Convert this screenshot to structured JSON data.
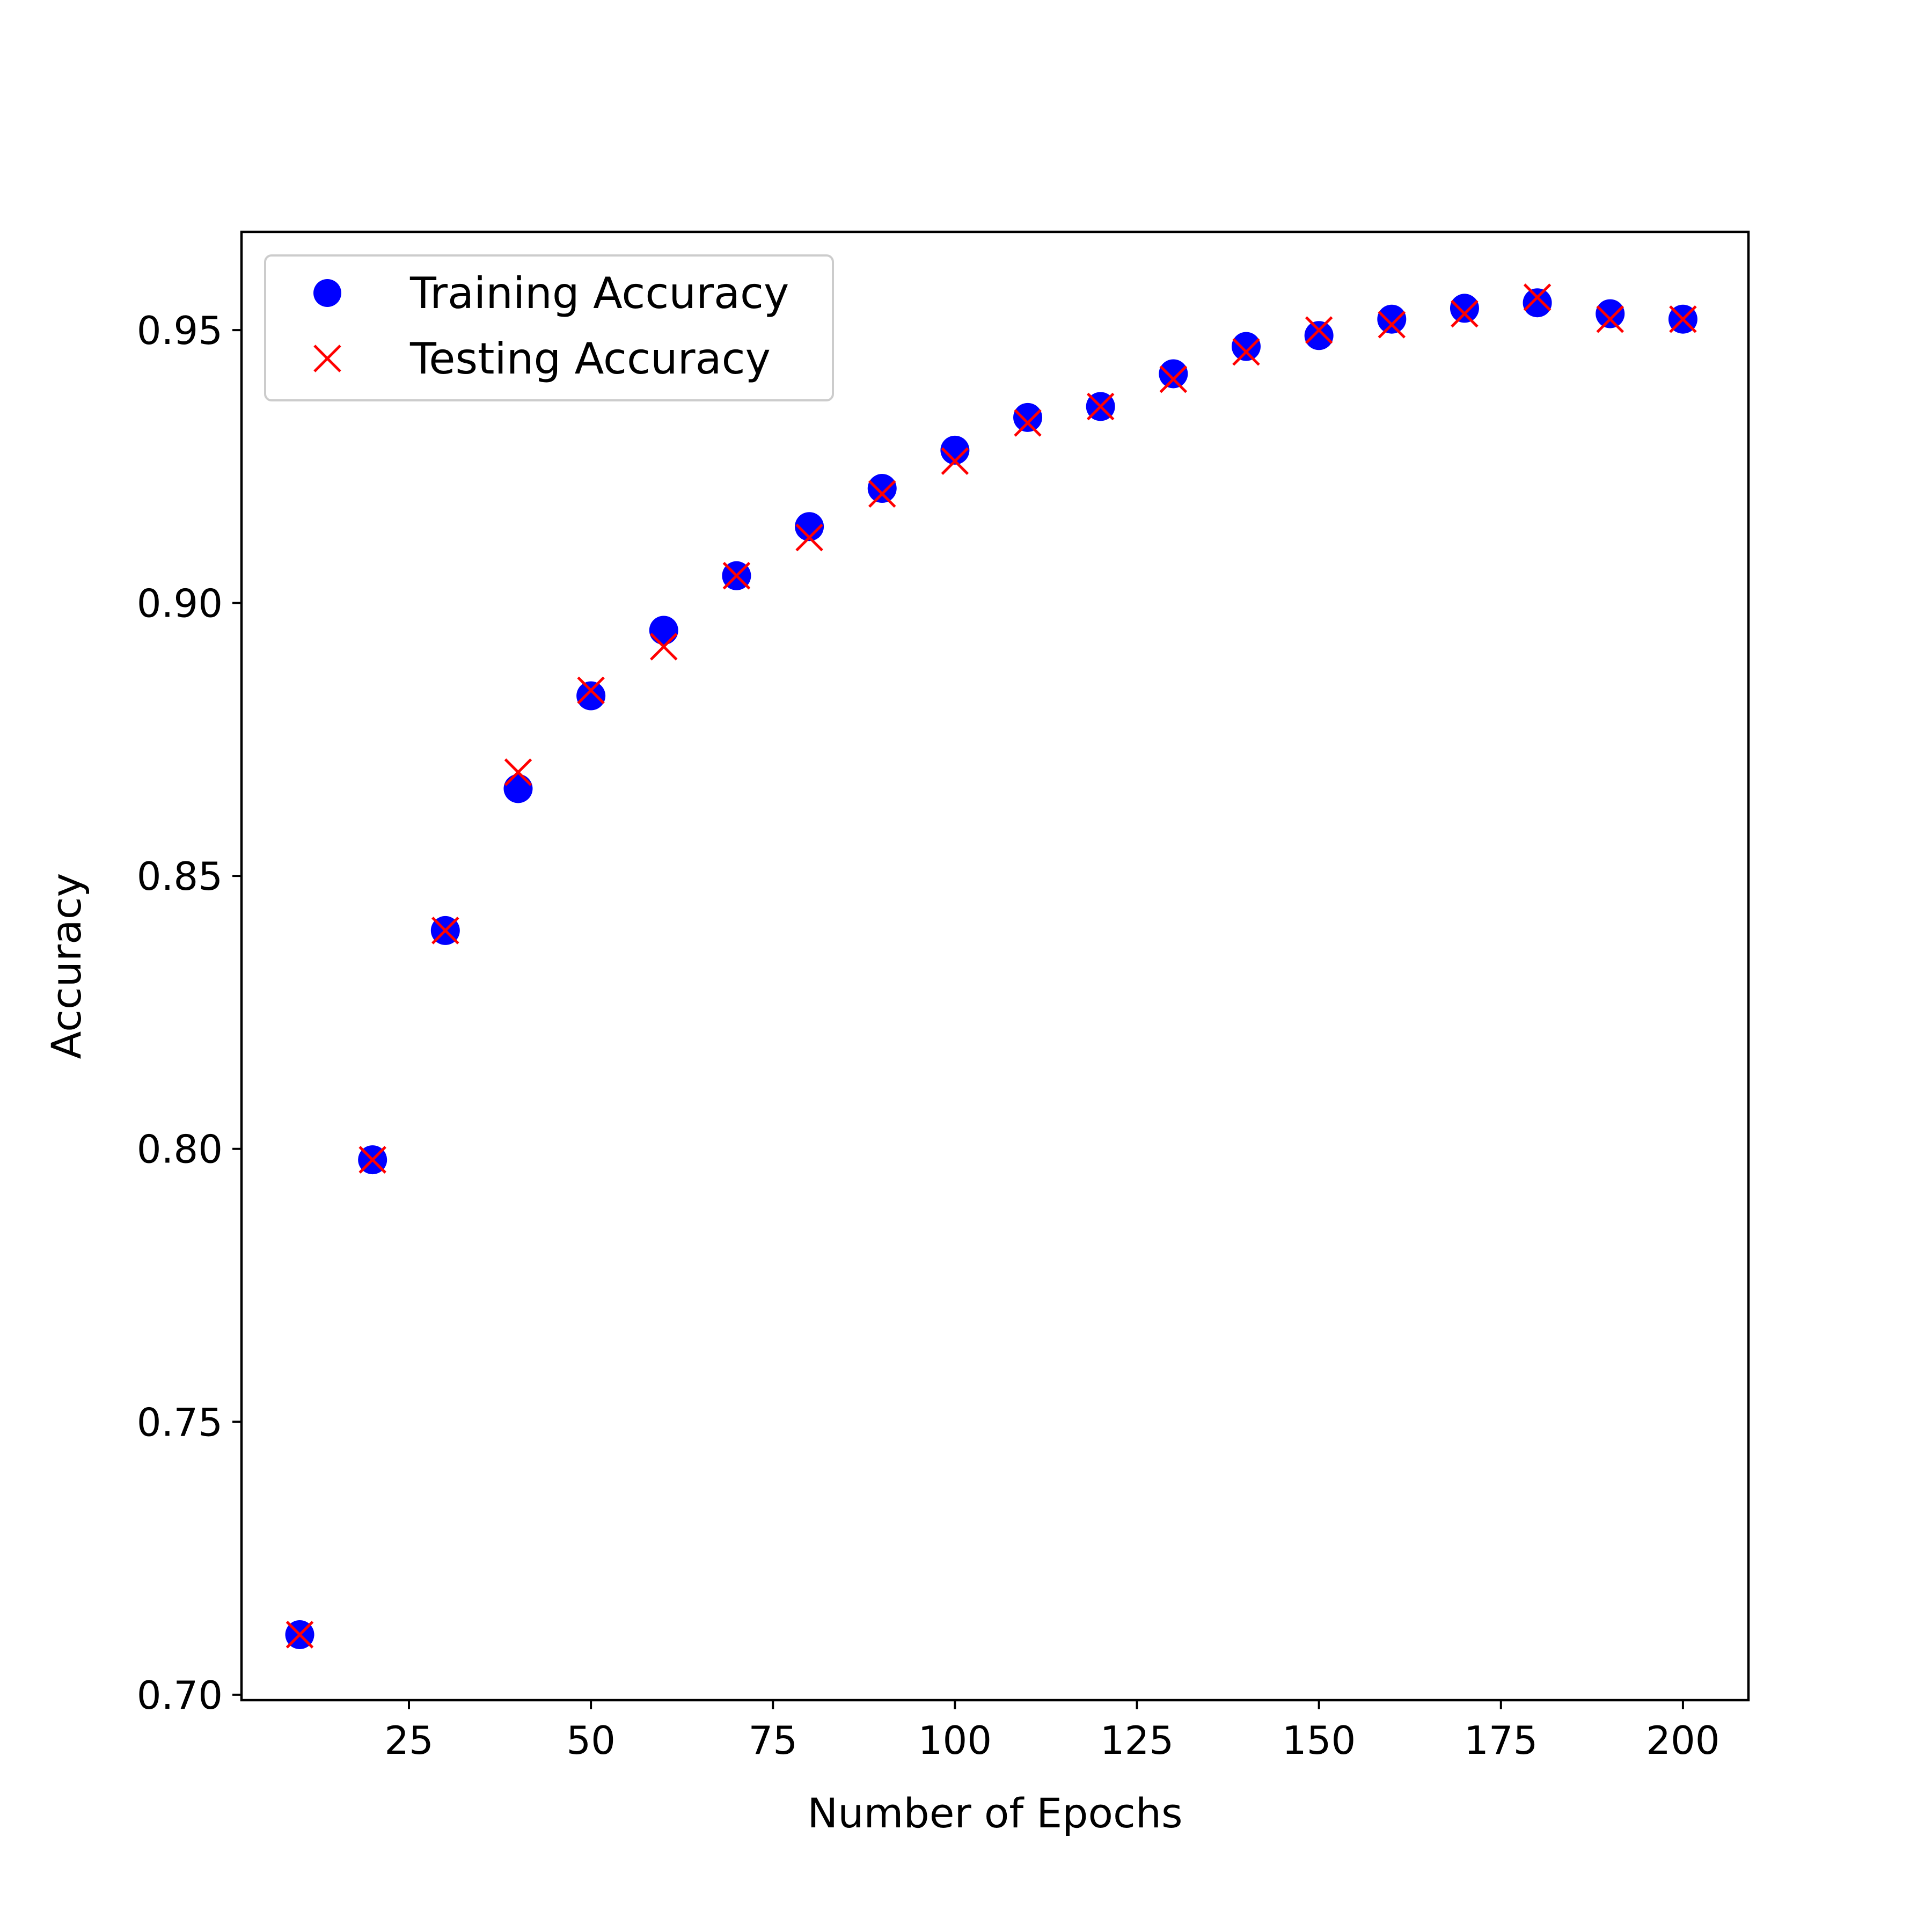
{
  "chart_data": {
    "type": "scatter",
    "title": "",
    "xlabel": "Number of Epochs",
    "ylabel": "Accuracy",
    "xlim": [
      2,
      209
    ],
    "ylim": [
      0.699,
      0.968
    ],
    "xticks": [
      25,
      50,
      75,
      100,
      125,
      150,
      175,
      200
    ],
    "xtick_labels": [
      "25",
      "50",
      "75",
      "100",
      "125",
      "150",
      "175",
      "200"
    ],
    "yticks": [
      0.7,
      0.75,
      0.8,
      0.85,
      0.9,
      0.95
    ],
    "ytick_labels": [
      "0.70",
      "0.75",
      "0.80",
      "0.85",
      "0.90",
      "0.95"
    ],
    "grid": false,
    "legend_position": "top-left",
    "x": [
      10,
      20,
      30,
      40,
      50,
      60,
      70,
      80,
      90,
      100,
      110,
      120,
      130,
      140,
      150,
      160,
      170,
      180,
      190,
      200
    ],
    "series": [
      {
        "name": "Training Accuracy",
        "marker": "circle",
        "color": "#0000ff",
        "values": [
          0.711,
          0.798,
          0.84,
          0.866,
          0.883,
          0.895,
          0.905,
          0.914,
          0.921,
          0.928,
          0.934,
          0.936,
          0.942,
          0.947,
          0.949,
          0.952,
          0.954,
          0.955,
          0.953,
          0.952
        ]
      },
      {
        "name": "Testing Accuracy",
        "marker": "x",
        "color": "#ff0000",
        "values": [
          0.711,
          0.798,
          0.84,
          0.869,
          0.884,
          0.892,
          0.905,
          0.912,
          0.92,
          0.926,
          0.933,
          0.936,
          0.941,
          0.946,
          0.95,
          0.951,
          0.953,
          0.956,
          0.952,
          0.952
        ]
      }
    ]
  }
}
